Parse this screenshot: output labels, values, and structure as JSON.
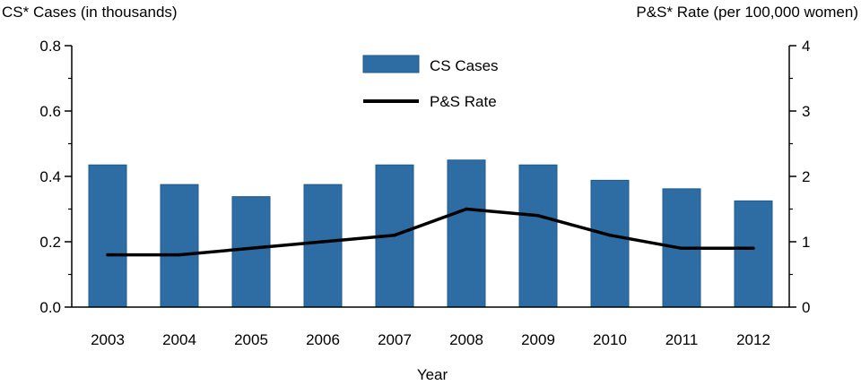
{
  "chart_data": {
    "type": "bar",
    "title": "",
    "categories": [
      "2003",
      "2004",
      "2005",
      "2006",
      "2007",
      "2008",
      "2009",
      "2010",
      "2011",
      "2012"
    ],
    "series": [
      {
        "name": "CS Cases",
        "type": "bar",
        "axis": "left",
        "color": "#2e6da4",
        "values": [
          0.435,
          0.375,
          0.338,
          0.375,
          0.435,
          0.45,
          0.435,
          0.388,
          0.362,
          0.325
        ]
      },
      {
        "name": "P&S Rate",
        "type": "line",
        "axis": "right",
        "color": "#000000",
        "values": [
          0.8,
          0.8,
          0.9,
          1.0,
          1.1,
          1.5,
          1.4,
          1.1,
          0.9,
          0.9
        ]
      }
    ],
    "xlabel": "Year",
    "ylabel_left": "CS* Cases (in thousands)",
    "ylabel_right": "P&S* Rate (per 100,000 women)",
    "ylim_left": [
      0,
      0.8
    ],
    "ylim_right": [
      0,
      4
    ],
    "yticks_left": [
      "0.0",
      "0.2",
      "0.4",
      "0.6",
      "0.8"
    ],
    "yticks_right": [
      "0",
      "1",
      "2",
      "3",
      "4"
    ],
    "legend_position": "top-center",
    "grid": false
  }
}
